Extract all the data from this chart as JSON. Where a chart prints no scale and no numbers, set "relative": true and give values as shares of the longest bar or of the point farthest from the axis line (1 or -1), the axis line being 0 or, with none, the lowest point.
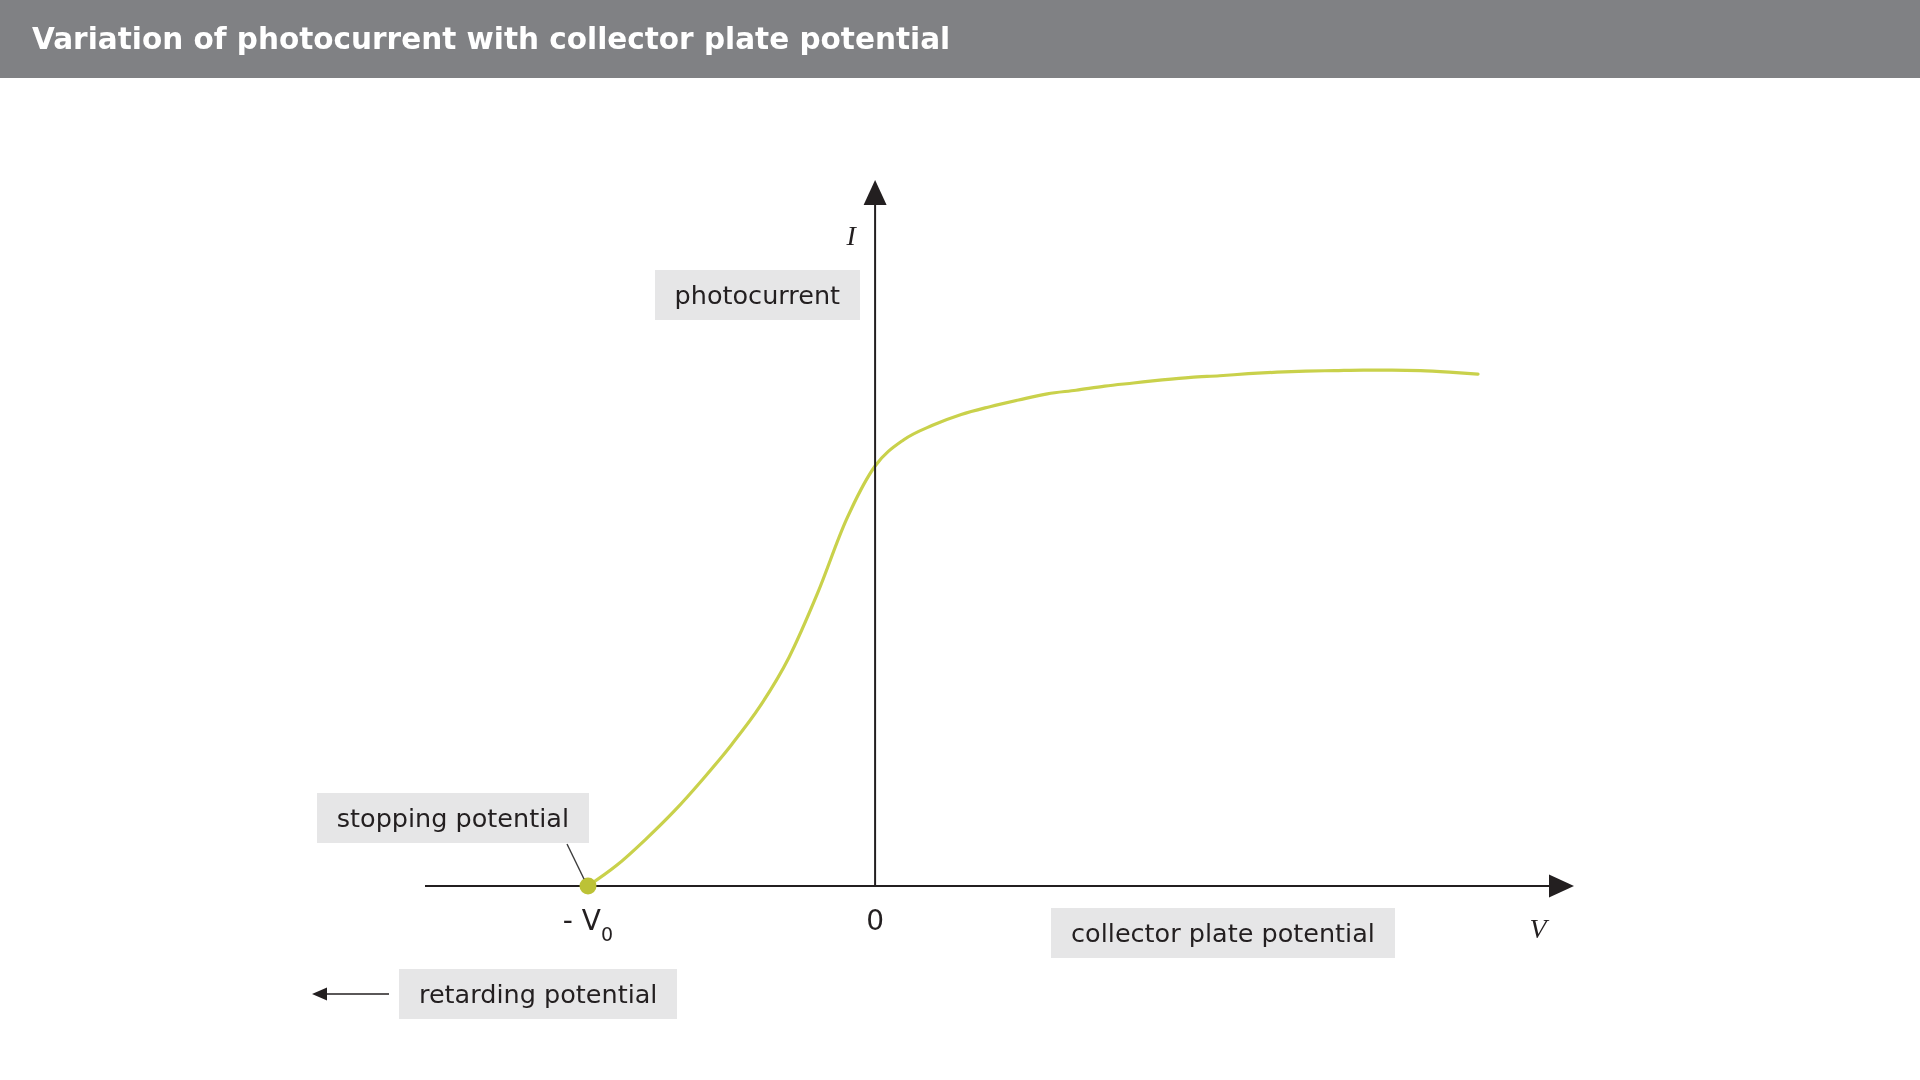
{
  "chart_data": {
    "type": "line",
    "title": "Variation of photocurrent with collector plate potential",
    "xlabel": "V",
    "ylabel": "I",
    "relative": true,
    "categories": [
      "- V$_{0}$",
      null,
      null,
      null,
      null,
      null,
      null,
      null,
      null,
      null,
      "0",
      null,
      null,
      null,
      null,
      null,
      null,
      null,
      null,
      null,
      null,
      null,
      null,
      null,
      null,
      null,
      null,
      null,
      null,
      null,
      null,
      null
    ],
    "series": [
      {
        "color": "#c9d14b",
        "values": [
          0,
          0.04,
          0.09,
          0.145,
          0.207,
          0.274,
          0.349,
          0.443,
          0.568,
          0.71,
          0.814,
          0.865,
          0.893,
          0.914,
          0.929,
          0.942,
          0.954,
          0.961,
          0.969,
          0.975,
          0.981,
          0.986,
          0.989,
          0.993,
          0.996,
          0.998,
          0.999,
          1,
          1,
          0.999,
          0.996,
          0.992
        ]
      },
      {
        "type": "scatter",
        "color": "#bcc236",
        "values": [
          0,
          null,
          null,
          null,
          null,
          null,
          null,
          null,
          null,
          null,
          null,
          null,
          null,
          null,
          null,
          null,
          null,
          null,
          null,
          null,
          null,
          null,
          null,
          null,
          null,
          null,
          null,
          null,
          null,
          null,
          null,
          null
        ]
      }
    ],
    "annotations": [
      "photocurrent",
      {
        "text": "stopping potential",
        "x": "- V$_{0}$",
        "y": 0
      },
      "collector plate potential",
      "retarding potential"
    ]
  }
}
